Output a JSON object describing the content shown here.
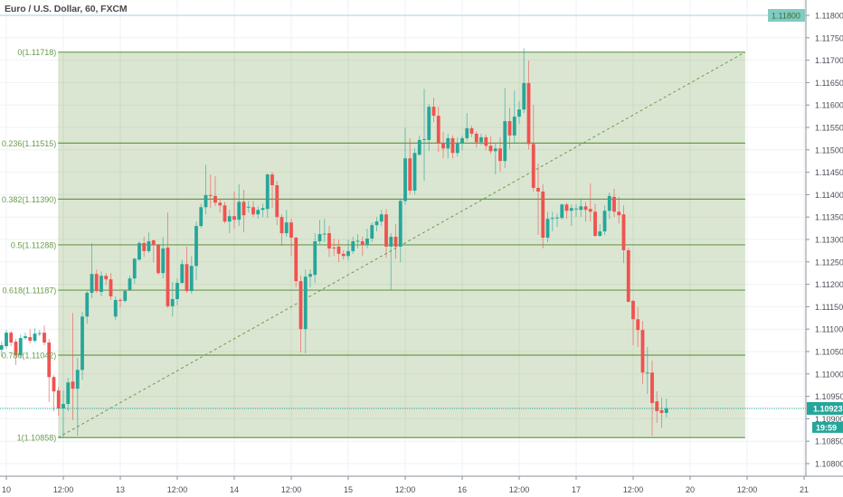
{
  "header": {
    "title": "Euro / U.S. Dollar, 60, FXCM"
  },
  "colors": {
    "up": "#26a69a",
    "down": "#ef5350",
    "fib_line": "#6a9a4b",
    "fib_fill": "#d9e5d0",
    "fib_text": "#6a9a4b",
    "price_tag": "#26a69a",
    "top_tag": "#80cbc4"
  },
  "chart_data": {
    "type": "candlestick",
    "title": "Euro / U.S. Dollar, 60, FXCM",
    "interval": "60",
    "ylim": [
      1.10775,
      1.11835
    ],
    "y_ticks": [
      "1.11800",
      "1.11750",
      "1.11700",
      "1.11650",
      "1.11600",
      "1.11550",
      "1.11500",
      "1.11450",
      "1.11400",
      "1.11350",
      "1.11300",
      "1.11250",
      "1.11200",
      "1.11150",
      "1.11100",
      "1.11050",
      "1.11000",
      "1.10950",
      "1.10900",
      "1.10850",
      "1.10800"
    ],
    "x_ticks": [
      {
        "bar": 1,
        "label": "10"
      },
      {
        "bar": 13,
        "label": "12:00"
      },
      {
        "bar": 25,
        "label": "13"
      },
      {
        "bar": 37,
        "label": "12:00"
      },
      {
        "bar": 49,
        "label": "14"
      },
      {
        "bar": 61,
        "label": "12:00"
      },
      {
        "bar": 73,
        "label": "15"
      },
      {
        "bar": 85,
        "label": "12:00"
      },
      {
        "bar": 97,
        "label": "16"
      },
      {
        "bar": 109,
        "label": "12:00"
      },
      {
        "bar": 121,
        "label": "17"
      },
      {
        "bar": 133,
        "label": "12:00"
      },
      {
        "bar": 145,
        "label": "20"
      },
      {
        "bar": 157,
        "label": "12:00"
      },
      {
        "bar": 169,
        "label": "21"
      }
    ],
    "candles_ohlc": [
      [
        1.11054,
        1.11072,
        1.11038,
        1.11064
      ],
      [
        1.11062,
        1.11098,
        1.11056,
        1.11092
      ],
      [
        1.11092,
        1.11096,
        1.11062,
        1.1107
      ],
      [
        1.11072,
        1.11078,
        1.1102,
        1.11042
      ],
      [
        1.11042,
        1.11088,
        1.11036,
        1.1108
      ],
      [
        1.1108,
        1.11092,
        1.11076,
        1.11084
      ],
      [
        1.11082,
        1.111,
        1.11068,
        1.11074
      ],
      [
        1.11074,
        1.11102,
        1.1107,
        1.1109
      ],
      [
        1.1109,
        1.11098,
        1.11084,
        1.11091
      ],
      [
        1.11092,
        1.11108,
        1.11064,
        1.1107
      ],
      [
        1.1107,
        1.11078,
        1.10937,
        1.10993
      ],
      [
        1.10993,
        1.10997,
        1.10917,
        1.10961
      ],
      [
        1.10963,
        1.10971,
        1.10907,
        1.10923
      ],
      [
        1.10923,
        1.10963,
        1.10858,
        1.10933
      ],
      [
        1.10933,
        1.10991,
        1.10917,
        1.10981
      ],
      [
        1.10983,
        1.11136,
        1.10897,
        1.10967
      ],
      [
        1.10967,
        1.11036,
        1.10862,
        1.11009
      ],
      [
        1.11009,
        1.11138,
        1.10987,
        1.11128
      ],
      [
        1.11128,
        1.11185,
        1.11112,
        1.11181
      ],
      [
        1.11181,
        1.11292,
        1.11169,
        1.11223
      ],
      [
        1.11223,
        1.11233,
        1.11181,
        1.11185
      ],
      [
        1.11183,
        1.11229,
        1.11173,
        1.11219
      ],
      [
        1.11219,
        1.11225,
        1.11199,
        1.11211
      ],
      [
        1.11211,
        1.11225,
        1.11165,
        1.11173
      ],
      [
        1.11128,
        1.11173,
        1.1112,
        1.11165
      ],
      [
        1.11165,
        1.11169,
        1.11149,
        1.11163
      ],
      [
        1.11163,
        1.11189,
        1.11159,
        1.11185
      ],
      [
        1.11187,
        1.11219,
        1.11185,
        1.11213
      ],
      [
        1.11213,
        1.11259,
        1.11201,
        1.11257
      ],
      [
        1.11255,
        1.11296,
        1.11253,
        1.11292
      ],
      [
        1.11292,
        1.11306,
        1.11261,
        1.11274
      ],
      [
        1.11274,
        1.11316,
        1.1127,
        1.11296
      ],
      [
        1.11298,
        1.113,
        1.11249,
        1.11288
      ],
      [
        1.11288,
        1.1129,
        1.11221,
        1.11225
      ],
      [
        1.11225,
        1.11306,
        1.11213,
        1.1128
      ],
      [
        1.11282,
        1.1136,
        1.11147,
        1.11151
      ],
      [
        1.11151,
        1.11205,
        1.11128,
        1.11167
      ],
      [
        1.11167,
        1.11213,
        1.11153,
        1.11203
      ],
      [
        1.11203,
        1.11255,
        1.11201,
        1.11245
      ],
      [
        1.11245,
        1.11284,
        1.11181,
        1.11185
      ],
      [
        1.11185,
        1.11263,
        1.11179,
        1.11241
      ],
      [
        1.11241,
        1.1134,
        1.11209,
        1.1133
      ],
      [
        1.1133,
        1.1138,
        1.11326,
        1.11372
      ],
      [
        1.11372,
        1.11467,
        1.11356,
        1.11399
      ],
      [
        1.11399,
        1.11445,
        1.1137,
        1.11397
      ],
      [
        1.11397,
        1.11441,
        1.11374,
        1.11382
      ],
      [
        1.11382,
        1.1139,
        1.1136,
        1.11376
      ],
      [
        1.11376,
        1.11384,
        1.11336,
        1.1134
      ],
      [
        1.1134,
        1.11366,
        1.11314,
        1.11352
      ],
      [
        1.11352,
        1.11407,
        1.11324,
        1.11344
      ],
      [
        1.11344,
        1.11423,
        1.1133,
        1.11384
      ],
      [
        1.11384,
        1.11411,
        1.11316,
        1.11354
      ],
      [
        1.11372,
        1.11386,
        1.1136,
        1.11373
      ],
      [
        1.11372,
        1.11386,
        1.1135,
        1.11356
      ],
      [
        1.11356,
        1.11374,
        1.11346,
        1.11366
      ],
      [
        1.11366,
        1.1138,
        1.1135,
        1.1137
      ],
      [
        1.11368,
        1.11447,
        1.11348,
        1.11445
      ],
      [
        1.11445,
        1.11451,
        1.1137,
        1.11421
      ],
      [
        1.11421,
        1.11431,
        1.11332,
        1.1135
      ],
      [
        1.1135,
        1.11356,
        1.11286,
        1.11314
      ],
      [
        1.11314,
        1.11366,
        1.11306,
        1.11338
      ],
      [
        1.11338,
        1.11346,
        1.11263,
        1.11304
      ],
      [
        1.11304,
        1.11306,
        1.11193,
        1.11207
      ],
      [
        1.11207,
        1.11219,
        1.11048,
        1.111
      ],
      [
        1.111,
        1.11233,
        1.11046,
        1.11217
      ],
      [
        1.11217,
        1.11233,
        1.11193,
        1.11223
      ],
      [
        1.11221,
        1.11314,
        1.11203,
        1.11296
      ],
      [
        1.11296,
        1.11344,
        1.1129,
        1.11312
      ],
      [
        1.11312,
        1.11346,
        1.11294,
        1.11313
      ],
      [
        1.11314,
        1.1133,
        1.11261,
        1.1128
      ],
      [
        1.11282,
        1.11302,
        1.11263,
        1.11281
      ],
      [
        1.11284,
        1.113,
        1.11249,
        1.11268
      ],
      [
        1.11268,
        1.11276,
        1.11255,
        1.11263
      ],
      [
        1.11263,
        1.113,
        1.11253,
        1.11274
      ],
      [
        1.11274,
        1.11306,
        1.11268,
        1.11296
      ],
      [
        1.11296,
        1.11312,
        1.1128,
        1.11297
      ],
      [
        1.11296,
        1.11306,
        1.11263,
        1.11288
      ],
      [
        1.11288,
        1.11324,
        1.1128,
        1.11302
      ],
      [
        1.11302,
        1.11338,
        1.11294,
        1.11332
      ],
      [
        1.11332,
        1.1135,
        1.11318,
        1.1134
      ],
      [
        1.1134,
        1.11366,
        1.1133,
        1.11356
      ],
      [
        1.11356,
        1.11368,
        1.11259,
        1.11284
      ],
      [
        1.11284,
        1.11314,
        1.11187,
        1.11306
      ],
      [
        1.11306,
        1.11334,
        1.11257,
        1.11284
      ],
      [
        1.11284,
        1.1139,
        1.11249,
        1.11386
      ],
      [
        1.11386,
        1.1155,
        1.11378,
        1.11481
      ],
      [
        1.11481,
        1.11526,
        1.11401,
        1.11409
      ],
      [
        1.11409,
        1.11503,
        1.11401,
        1.11493
      ],
      [
        1.11489,
        1.11532,
        1.11487,
        1.11522
      ],
      [
        1.11522,
        1.11636,
        1.11431,
        1.11524
      ],
      [
        1.11522,
        1.11602,
        1.11497,
        1.11596
      ],
      [
        1.11596,
        1.11616,
        1.11562,
        1.11576
      ],
      [
        1.11576,
        1.11596,
        1.11495,
        1.11515
      ],
      [
        1.11515,
        1.1154,
        1.11481,
        1.11503
      ],
      [
        1.11503,
        1.11536,
        1.11481,
        1.11526
      ],
      [
        1.11526,
        1.11532,
        1.11481,
        1.11493
      ],
      [
        1.11493,
        1.11528,
        1.11485,
        1.11515
      ],
      [
        1.11515,
        1.11532,
        1.11499,
        1.11526
      ],
      [
        1.11526,
        1.11582,
        1.1152,
        1.11548
      ],
      [
        1.11548,
        1.11554,
        1.11528,
        1.11536
      ],
      [
        1.11536,
        1.11542,
        1.11505,
        1.11517
      ],
      [
        1.11517,
        1.11536,
        1.11511,
        1.11528
      ],
      [
        1.11528,
        1.11534,
        1.11499,
        1.11509
      ],
      [
        1.11509,
        1.1153,
        1.11491,
        1.11497
      ],
      [
        1.11497,
        1.11515,
        1.11445,
        1.11503
      ],
      [
        1.11503,
        1.11528,
        1.11451,
        1.11475
      ],
      [
        1.11475,
        1.11638,
        1.11459,
        1.11564
      ],
      [
        1.11564,
        1.11594,
        1.11501,
        1.11532
      ],
      [
        1.11532,
        1.11632,
        1.11515,
        1.11574
      ],
      [
        1.11574,
        1.11608,
        1.11558,
        1.1159
      ],
      [
        1.1159,
        1.11727,
        1.11582,
        1.11649
      ],
      [
        1.11649,
        1.11699,
        1.11501,
        1.11513
      ],
      [
        1.11513,
        1.116,
        1.11407,
        1.11415
      ],
      [
        1.11415,
        1.11469,
        1.1131,
        1.11407
      ],
      [
        1.11407,
        1.11423,
        1.1128,
        1.11304
      ],
      [
        1.11304,
        1.11362,
        1.11294,
        1.11346
      ],
      [
        1.11346,
        1.11362,
        1.11318,
        1.11348
      ],
      [
        1.11348,
        1.11358,
        1.11328,
        1.11349
      ],
      [
        1.11348,
        1.1138,
        1.11344,
        1.11378
      ],
      [
        1.11378,
        1.11382,
        1.11346,
        1.11364
      ],
      [
        1.11364,
        1.11378,
        1.1133,
        1.1137
      ],
      [
        1.11368,
        1.11378,
        1.1135,
        1.11369
      ],
      [
        1.11366,
        1.11392,
        1.1135,
        1.11374
      ],
      [
        1.11374,
        1.11384,
        1.1134,
        1.11366
      ],
      [
        1.11368,
        1.11425,
        1.1134,
        1.11362
      ],
      [
        1.11362,
        1.1138,
        1.11306,
        1.11308
      ],
      [
        1.11308,
        1.11334,
        1.11306,
        1.11318
      ],
      [
        1.11318,
        1.11376,
        1.1131,
        1.11364
      ],
      [
        1.11364,
        1.11405,
        1.11346,
        1.11397
      ],
      [
        1.11395,
        1.11413,
        1.1135,
        1.11362
      ],
      [
        1.11362,
        1.11395,
        1.11336,
        1.11354
      ],
      [
        1.11356,
        1.11376,
        1.11247,
        1.11276
      ],
      [
        1.11276,
        1.11282,
        1.11159,
        1.11161
      ],
      [
        1.11163,
        1.11165,
        1.11064,
        1.11122
      ],
      [
        1.11122,
        1.11149,
        1.1106,
        1.11098
      ],
      [
        1.11098,
        1.11118,
        1.10977,
        1.11003
      ],
      [
        1.11002,
        1.1106,
        1.10955,
        1.11003
      ],
      [
        1.11003,
        1.1103,
        1.10862,
        1.10935
      ],
      [
        1.10939,
        1.10961,
        1.10891,
        1.10917
      ],
      [
        1.10919,
        1.10947,
        1.1088,
        1.10913
      ],
      [
        1.10913,
        1.10945,
        1.10903,
        1.10923
      ]
    ],
    "fibonacci": {
      "start_bar": 11.9,
      "end_bar": 156.6,
      "levels": [
        {
          "ratio": 0,
          "price": 1.11718,
          "label": "0(1.11718)"
        },
        {
          "ratio": 0.236,
          "price": 1.11515,
          "label": "0.236(1.11515)"
        },
        {
          "ratio": 0.382,
          "price": 1.1139,
          "label": "0.382(1.11390)"
        },
        {
          "ratio": 0.5,
          "price": 1.11288,
          "label": "0.5(1.11288)"
        },
        {
          "ratio": 0.618,
          "price": 1.11187,
          "label": "0.618(1.11187)"
        },
        {
          "ratio": 0.786,
          "price": 1.11042,
          "label": "0.786(1.11042)"
        },
        {
          "ratio": 1,
          "price": 1.10858,
          "label": "1(1.10858)"
        }
      ]
    },
    "horizontal_line": {
      "price": 1.118,
      "label": "1.11800"
    },
    "last_price": {
      "price": 1.10923,
      "label": "1.10923",
      "countdown": "19:59"
    }
  }
}
